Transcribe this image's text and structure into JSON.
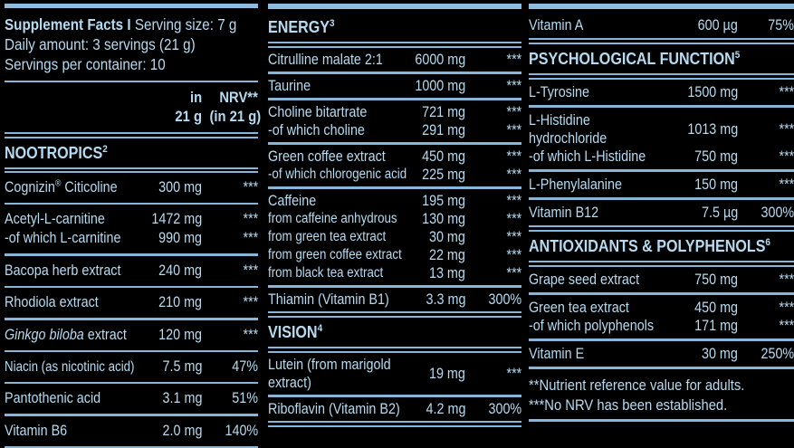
{
  "theme": {
    "background": "#000000",
    "text_color": "#b6dbf1",
    "line_color": "#88b6d8",
    "bar_color": "#8fbcdc"
  },
  "columns": [
    {
      "name": "column-left",
      "bottom": "sep",
      "items": [
        {
          "kind": "title_block",
          "line1": [
            [
              "Supplement Facts I ",
              "b"
            ],
            [
              "Serving size: 7 g",
              ""
            ]
          ],
          "lines": [
            "Daily amount: 3 servings (21 g)",
            "Servings per container: 10"
          ]
        },
        {
          "kind": "unit_headers",
          "amount": [
            "in",
            "21 g"
          ],
          "nrv": [
            "NRV**",
            "(in 21 g)"
          ]
        },
        {
          "kind": "section_header",
          "slug": "nootropics",
          "title": "NOOTROPICS",
          "sup": "2"
        },
        {
          "kind": "row_block",
          "entries": [
            {
              "name": [
                [
                  "Cognizin",
                  ""
                ],
                [
                  "®",
                  "sup"
                ],
                [
                  " Citicoline",
                  ""
                ]
              ],
              "amount": "300 mg",
              "nrv": "***"
            }
          ]
        },
        {
          "kind": "row_block",
          "entries": [
            {
              "name": "Acetyl-L-carnitine",
              "amount": "1472 mg",
              "nrv": "***"
            },
            {
              "name": "-of which L-carnitine",
              "amount": "990 mg",
              "nrv": "***"
            }
          ]
        },
        {
          "kind": "row_block",
          "entries": [
            {
              "name": "Bacopa herb extract",
              "amount": "240 mg",
              "nrv": "***"
            }
          ]
        },
        {
          "kind": "row_block",
          "entries": [
            {
              "name": "Rhodiola extract",
              "amount": "210 mg",
              "nrv": "***"
            }
          ]
        },
        {
          "kind": "row_block",
          "entries": [
            {
              "name": [
                [
                  "Ginkgo biloba ",
                  "i"
                ],
                [
                  "extract",
                  ""
                ]
              ],
              "amount": "120 mg",
              "nrv": "***"
            }
          ]
        },
        {
          "kind": "row_block",
          "entries": [
            {
              "name": "Niacin (as nicotinic acid)",
              "small": true,
              "amount": "7.5 mg",
              "nrv": "47%"
            }
          ]
        },
        {
          "kind": "row_block",
          "entries": [
            {
              "name": "Pantothenic acid",
              "amount": "3.1 mg",
              "nrv": "51%"
            }
          ]
        },
        {
          "kind": "row_block",
          "entries": [
            {
              "name": "Vitamin B6",
              "amount": "2.0 mg",
              "nrv": "140%"
            }
          ]
        }
      ]
    },
    {
      "name": "column-middle",
      "bottom": "dsep",
      "items": [
        {
          "kind": "section_header",
          "slug": "energy",
          "title": "ENERGY",
          "sup": "3"
        },
        {
          "kind": "row_block",
          "entries": [
            {
              "name": "Citrulline malate 2:1",
              "amount": "6000 mg",
              "nrv": "***"
            }
          ]
        },
        {
          "kind": "row_block",
          "entries": [
            {
              "name": "Taurine",
              "amount": "1000 mg",
              "nrv": "***"
            }
          ]
        },
        {
          "kind": "row_block",
          "entries": [
            {
              "name": "Choline bitartrate",
              "amount": "721 mg",
              "nrv": "***"
            },
            {
              "name": "-of which choline",
              "amount": "291 mg",
              "nrv": "***"
            }
          ]
        },
        {
          "kind": "row_block",
          "entries": [
            {
              "name": "Green coffee extract",
              "amount": "450 mg",
              "nrv": "***"
            },
            {
              "name": "-of which chlorogenic acid",
              "small": true,
              "amount": "225 mg",
              "nrv": "***"
            }
          ]
        },
        {
          "kind": "row_block",
          "entries": [
            {
              "name": "Caffeine",
              "amount": "195 mg",
              "nrv": "***"
            },
            {
              "name": "from caffeine anhydrous",
              "small": true,
              "amount": "130 mg",
              "nrv": "***"
            },
            {
              "name": "from green tea extract",
              "small": true,
              "amount": "30 mg",
              "nrv": "***"
            },
            {
              "name": "from green coffee extract",
              "small": true,
              "amount": "22 mg",
              "nrv": "***"
            },
            {
              "name": "from black tea extract",
              "small": true,
              "amount": "13 mg",
              "nrv": "***"
            }
          ]
        },
        {
          "kind": "row_block",
          "entries": [
            {
              "name": "Thiamin (Vitamin B1)",
              "amount": "3.3 mg",
              "nrv": "300%"
            }
          ]
        },
        {
          "kind": "section_header",
          "slug": "vision",
          "title": "VISION",
          "sup": "4"
        },
        {
          "kind": "row_block",
          "entries": [
            {
              "name_lines": [
                "Lutein (from marigold",
                "extract)"
              ],
              "amount": "19 mg",
              "nrv": "***"
            }
          ]
        },
        {
          "kind": "row_block",
          "entries": [
            {
              "name": "Riboflavin (Vitamin B2)",
              "amount": "4.2 mg",
              "nrv": "300%"
            }
          ]
        }
      ]
    },
    {
      "name": "column-right",
      "bottom": "sep",
      "items": [
        {
          "kind": "row_block",
          "entries": [
            {
              "name": "Vitamin A",
              "amount": "600 µg",
              "nrv": "75%"
            }
          ]
        },
        {
          "kind": "section_header",
          "slug": "psychological-function",
          "title": "PSYCHOLOGICAL FUNCTION",
          "sup": "5"
        },
        {
          "kind": "row_block",
          "entries": [
            {
              "name": "L-Tyrosine",
              "amount": "1500 mg",
              "nrv": "***"
            }
          ]
        },
        {
          "kind": "row_block",
          "entries": [
            {
              "name_lines": [
                "L-Histidine",
                "hydrochloride"
              ],
              "amount": "1013 mg",
              "nrv": "***"
            },
            {
              "name": "-of which L-Histidine",
              "amount": "750 mg",
              "nrv": "***"
            }
          ]
        },
        {
          "kind": "row_block",
          "entries": [
            {
              "name": "L-Phenylalanine",
              "amount": "150 mg",
              "nrv": "***"
            }
          ]
        },
        {
          "kind": "row_block",
          "entries": [
            {
              "name": "Vitamin B12",
              "amount": "7.5 µg",
              "nrv": "300%"
            }
          ]
        },
        {
          "kind": "section_header",
          "slug": "antioxidants-polyphenols",
          "title": "ANTIOXIDANTS & POLYPHENOLS",
          "sup": "6"
        },
        {
          "kind": "row_block",
          "entries": [
            {
              "name": "Grape seed extract",
              "amount": "750 mg",
              "nrv": "***"
            }
          ]
        },
        {
          "kind": "row_block",
          "entries": [
            {
              "name": "Green tea extract",
              "amount": "450 mg",
              "nrv": "***"
            },
            {
              "name": "-of which polyphenols",
              "amount": "171 mg",
              "nrv": "***"
            }
          ]
        },
        {
          "kind": "row_block",
          "entries": [
            {
              "name": "Vitamin E",
              "amount": "30 mg",
              "nrv": "250%"
            }
          ]
        },
        {
          "kind": "footnotes",
          "lines": [
            "**Nutrient reference value for adults.",
            "***No NRV has been established."
          ]
        }
      ]
    }
  ]
}
